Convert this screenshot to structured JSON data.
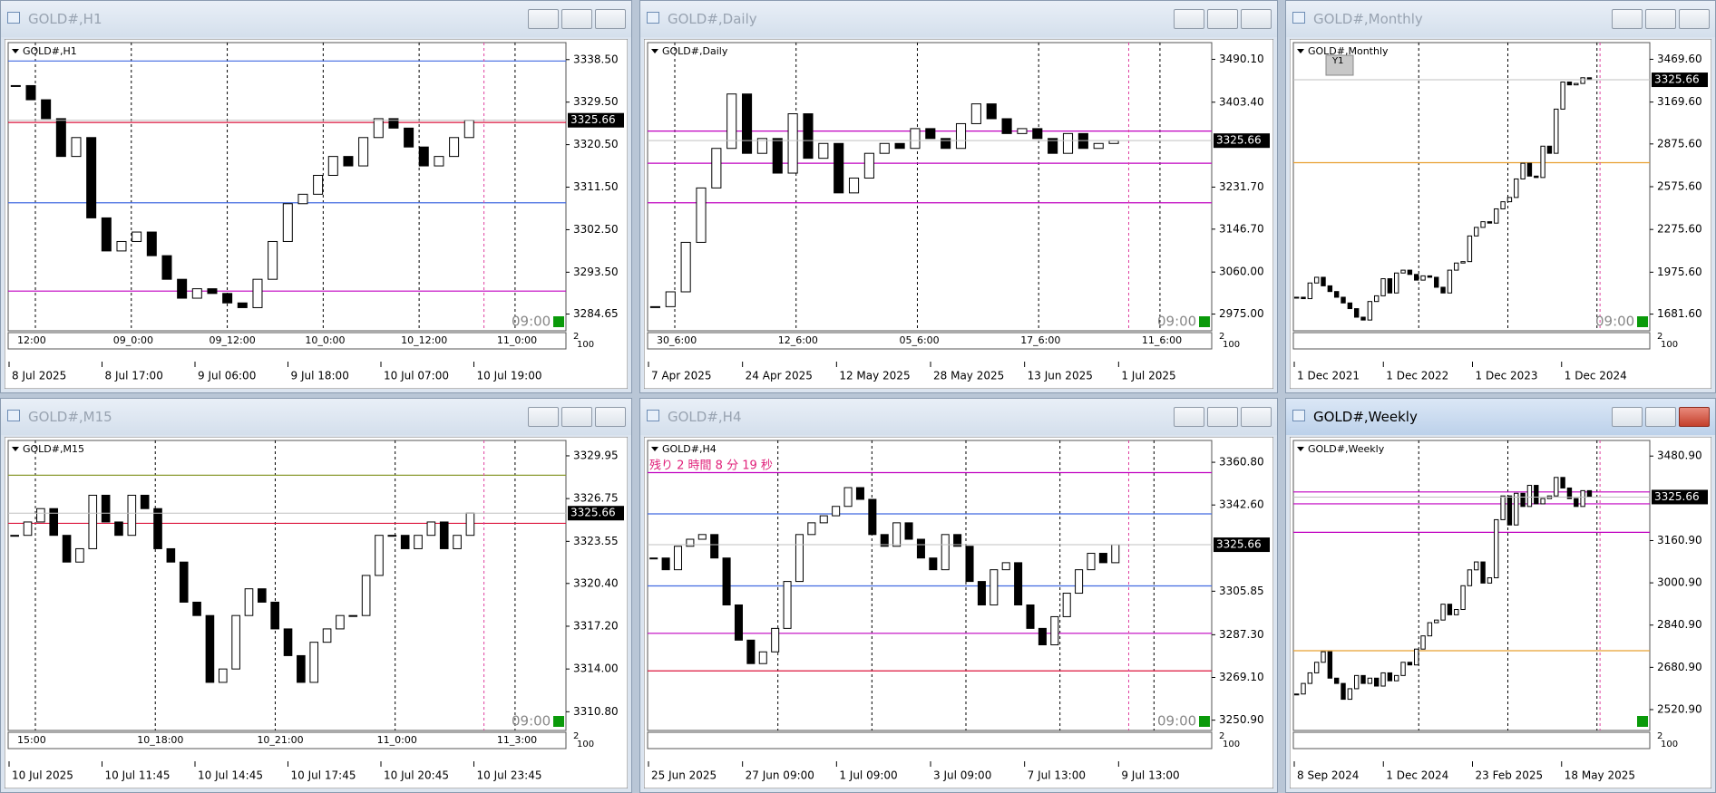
{
  "windows": [
    {
      "title": "GOLD#,H1",
      "label": "GOLD#,H1",
      "active": false,
      "ylim": [
        3281.1,
        3342.1
      ],
      "yticks": [
        {
          "value": 3338.5,
          "label": "3338.50"
        },
        {
          "value": 3329.5,
          "label": "3329.50"
        },
        {
          "value": 3320.5,
          "label": "3320.50"
        },
        {
          "value": 3311.5,
          "label": "3311.50"
        },
        {
          "value": 3302.5,
          "label": "3302.50"
        },
        {
          "value": 3293.5,
          "label": "3293.50"
        },
        {
          "value": 3284.65,
          "label": "3284.65"
        }
      ],
      "price": {
        "value": 3325.66,
        "label": "3325.66"
      },
      "time_labels": [
        "12:00",
        "09_0:00",
        "09_12:00",
        "10_0:00",
        "10_12:00",
        "11_0:00"
      ],
      "dates": [
        "8 Jul 2025",
        "8 Jul 17:00",
        "9 Jul 06:00",
        "9 Jul 18:00",
        "10 Jul 07:00",
        "10 Jul 19:00"
      ],
      "server_time": "09:00",
      "sub_scale": [
        "2",
        "100"
      ],
      "closes": [
        3333,
        3330,
        3326,
        3318,
        3322,
        3305,
        3298,
        3300,
        3302,
        3297,
        3292,
        3288,
        3290,
        3289,
        3287,
        3286,
        3292,
        3300,
        3308,
        3310,
        3314,
        3318,
        3316,
        3322,
        3326,
        3324,
        3320,
        3316,
        3318,
        3322,
        3325.66
      ],
      "levels": [
        {
          "price": 3338.2,
          "color": "#4169e1"
        },
        {
          "price": 3325.2,
          "color": "#dc143c"
        },
        {
          "price": 3308.2,
          "color": "#4169e1"
        },
        {
          "price": 3289.5,
          "color": "#c000c0"
        }
      ]
    },
    {
      "title": "GOLD#,Daily",
      "label": "GOLD#,Daily",
      "active": false,
      "ylim": [
        2941.2,
        3523.9
      ],
      "yticks": [
        {
          "value": 3490.1,
          "label": "3490.10"
        },
        {
          "value": 3403.4,
          "label": "3403.40"
        },
        {
          "value": 3231.7,
          "label": "3231.70"
        },
        {
          "value": 3146.7,
          "label": "3146.70"
        },
        {
          "value": 3060,
          "label": "3060.00"
        },
        {
          "value": 2975,
          "label": "2975.00"
        }
      ],
      "price": {
        "value": 3325.66,
        "label": "3325.66"
      },
      "time_labels": [
        "30_6:00",
        "12_6:00",
        "05_6:00",
        "17_6:00",
        "11_6:00"
      ],
      "dates": [
        "7 Apr 2025",
        "24 Apr 2025",
        "12 May 2025",
        "28 May 2025",
        "13 Jun 2025",
        "1 Jul 2025"
      ],
      "server_time": "09:00",
      "sub_scale": [
        "2",
        "100"
      ],
      "closes": [
        2990,
        3020,
        3120,
        3230,
        3310,
        3420,
        3300,
        3330,
        3260,
        3380,
        3290,
        3320,
        3220,
        3250,
        3300,
        3320,
        3310,
        3350,
        3330,
        3310,
        3360,
        3400,
        3370,
        3340,
        3350,
        3330,
        3300,
        3340,
        3310,
        3320,
        3325.66
      ],
      "levels": [
        {
          "price": 3345,
          "color": "#c000c0"
        },
        {
          "price": 3280,
          "color": "#c000c0"
        },
        {
          "price": 3200,
          "color": "#c000c0"
        }
      ]
    },
    {
      "title": "GOLD#,Monthly",
      "label": "GOLD#,Monthly",
      "active": false,
      "button": "Y1",
      "ylim": [
        1564.5,
        3586.7
      ],
      "yticks": [
        {
          "value": 3469.6,
          "label": "3469.60"
        },
        {
          "value": 3169.6,
          "label": "3169.60"
        },
        {
          "value": 2875.6,
          "label": "2875.60"
        },
        {
          "value": 2575.6,
          "label": "2575.60"
        },
        {
          "value": 2275.6,
          "label": "2275.60"
        },
        {
          "value": 1975.6,
          "label": "1975.60"
        },
        {
          "value": 1681.6,
          "label": "1681.60"
        }
      ],
      "price": {
        "value": 3325.66,
        "label": "3325.66"
      },
      "time_labels": [],
      "dates": [
        "1 Dec 2021",
        "1 Dec 2022",
        "1 Dec 2023",
        "1 Dec 2024"
      ],
      "server_time": "09:00",
      "sub_scale": [
        "2",
        "100"
      ],
      "closes": [
        1800,
        1790,
        1900,
        1940,
        1880,
        1840,
        1800,
        1760,
        1720,
        1660,
        1640,
        1770,
        1810,
        1930,
        1830,
        1970,
        1990,
        1960,
        1920,
        1950,
        1940,
        1870,
        1830,
        1990,
        2040,
        2050,
        2230,
        2290,
        2330,
        2320,
        2420,
        2470,
        2500,
        2630,
        2740,
        2650,
        2640,
        2860,
        2810,
        3120,
        3310,
        3290,
        3300,
        3340,
        3325.66
      ],
      "levels": [
        {
          "price": 2744,
          "color": "#e8a030"
        }
      ]
    },
    {
      "title": "GOLD#,M15",
      "label": "GOLD#,M15",
      "active": false,
      "ylim": [
        3309.4,
        3331.1
      ],
      "yticks": [
        {
          "value": 3329.95,
          "label": "3329.95"
        },
        {
          "value": 3326.75,
          "label": "3326.75"
        },
        {
          "value": 3323.55,
          "label": "3323.55"
        },
        {
          "value": 3320.4,
          "label": "3320.40"
        },
        {
          "value": 3317.2,
          "label": "3317.20"
        },
        {
          "value": 3314,
          "label": "3314.00"
        },
        {
          "value": 3310.8,
          "label": "3310.80"
        }
      ],
      "price": {
        "value": 3325.66,
        "label": "3325.66"
      },
      "time_labels": [
        "15:00",
        "10_18:00",
        "10_21:00",
        "11_0:00",
        "11_3:00"
      ],
      "dates": [
        "10 Jul 2025",
        "10 Jul 11:45",
        "10 Jul 14:45",
        "10 Jul 17:45",
        "10 Jul 20:45",
        "10 Jul 23:45"
      ],
      "server_time": "09:00",
      "sub_scale": [
        "2",
        "100"
      ],
      "closes": [
        3324,
        3325,
        3326,
        3324,
        3322,
        3323,
        3327,
        3325,
        3324,
        3327,
        3326,
        3323,
        3322,
        3319,
        3318,
        3313,
        3314,
        3318,
        3320,
        3319,
        3317,
        3315,
        3313,
        3316,
        3317,
        3318,
        3318,
        3321,
        3324,
        3324,
        3323,
        3324,
        3325,
        3323,
        3324,
        3325.66
      ],
      "levels": [
        {
          "price": 3328.5,
          "color": "#8a9a30"
        },
        {
          "price": 3324.9,
          "color": "#dc143c"
        }
      ]
    },
    {
      "title": "GOLD#,H4",
      "label": "GOLD#,H4",
      "active": false,
      "countdown": "残り 2 時間 8 分 19 秒",
      "ylim": [
        3246.5,
        3370.1
      ],
      "yticks": [
        {
          "value": 3360.8,
          "label": "3360.80"
        },
        {
          "value": 3342.6,
          "label": "3342.60"
        },
        {
          "value": 3305.85,
          "label": "3305.85"
        },
        {
          "value": 3287.3,
          "label": "3287.30"
        },
        {
          "value": 3269.1,
          "label": "3269.10"
        },
        {
          "value": 3250.9,
          "label": "3250.90"
        }
      ],
      "price": {
        "value": 3325.66,
        "label": "3325.66"
      },
      "time_labels": [],
      "dates": [
        "25 Jun 2025",
        "27 Jun 09:00",
        "1 Jul 09:00",
        "3 Jul 09:00",
        "7 Jul 13:00",
        "9 Jul 13:00"
      ],
      "server_time": "09:00",
      "sub_scale": [
        "2",
        "100"
      ],
      "closes": [
        3320,
        3315,
        3325,
        3328,
        3330,
        3320,
        3300,
        3285,
        3275,
        3280,
        3290,
        3310,
        3330,
        3335,
        3338,
        3342,
        3350,
        3345,
        3330,
        3325,
        3335,
        3328,
        3320,
        3315,
        3330,
        3325,
        3310,
        3300,
        3315,
        3318,
        3300,
        3290,
        3283,
        3295,
        3305,
        3315,
        3322,
        3318,
        3325.66
      ],
      "levels": [
        {
          "price": 3356.4,
          "color": "#c000c0"
        },
        {
          "price": 3338.8,
          "color": "#4169e1"
        },
        {
          "price": 3308.1,
          "color": "#4169e1"
        },
        {
          "price": 3287.9,
          "color": "#c000c0"
        },
        {
          "price": 3271.9,
          "color": "#dc143c"
        }
      ]
    },
    {
      "title": "GOLD#,Weekly",
      "label": "GOLD#,Weekly",
      "active": true,
      "ylim": [
        2441.9,
        3540
      ],
      "yticks": [
        {
          "value": 3480.9,
          "label": "3480.90"
        },
        {
          "value": 3160.9,
          "label": "3160.90"
        },
        {
          "value": 3000.9,
          "label": "3000.90"
        },
        {
          "value": 2840.9,
          "label": "2840.90"
        },
        {
          "value": 2680.9,
          "label": "2680.90"
        },
        {
          "value": 2520.9,
          "label": "2520.90"
        }
      ],
      "price": {
        "value": 3325.66,
        "label": "3325.66"
      },
      "time_labels": [],
      "dates": [
        "8 Sep 2024",
        "1 Dec 2024",
        "23 Feb 2025",
        "18 May 2025"
      ],
      "sub_scale": [
        "2",
        "100"
      ],
      "closes": [
        2580,
        2620,
        2660,
        2700,
        2740,
        2640,
        2620,
        2560,
        2600,
        2650,
        2620,
        2640,
        2610,
        2660,
        2630,
        2650,
        2700,
        2690,
        2750,
        2800,
        2850,
        2860,
        2920,
        2880,
        2900,
        2990,
        3050,
        3080,
        3000,
        3020,
        3240,
        3330,
        3220,
        3340,
        3290,
        3370,
        3300,
        3320,
        3330,
        3400,
        3360,
        3320,
        3290,
        3350,
        3325.66
      ],
      "levels": [
        {
          "price": 3345,
          "color": "#c000c0"
        },
        {
          "price": 3300,
          "color": "#c000c0"
        },
        {
          "price": 3192,
          "color": "#c000c0"
        },
        {
          "price": 2744,
          "color": "#e8a030"
        }
      ]
    }
  ]
}
